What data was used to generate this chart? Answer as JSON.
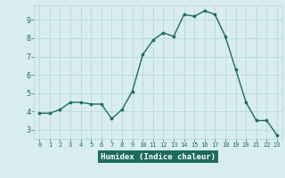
{
  "x": [
    0,
    1,
    2,
    3,
    4,
    5,
    6,
    7,
    8,
    9,
    10,
    11,
    12,
    13,
    14,
    15,
    16,
    17,
    18,
    19,
    20,
    21,
    22,
    23
  ],
  "y": [
    3.9,
    3.9,
    4.1,
    4.5,
    4.5,
    4.4,
    4.4,
    3.6,
    4.1,
    5.1,
    7.1,
    7.9,
    8.3,
    8.1,
    9.3,
    9.2,
    9.5,
    9.3,
    8.1,
    6.3,
    4.5,
    3.5,
    3.5,
    2.7
  ],
  "xlabel": "Humidex (Indice chaleur)",
  "ylim": [
    2.5,
    9.8
  ],
  "xlim": [
    -0.5,
    23.5
  ],
  "yticks": [
    3,
    4,
    5,
    6,
    7,
    8,
    9
  ],
  "xticks": [
    0,
    1,
    2,
    3,
    4,
    5,
    6,
    7,
    8,
    9,
    10,
    11,
    12,
    13,
    14,
    15,
    16,
    17,
    18,
    19,
    20,
    21,
    22,
    23
  ],
  "line_color": "#1e6b5e",
  "marker_color": "#1e6b5e",
  "bg_color": "#d8eeee",
  "grid_color": "#b8d8d8",
  "label_bg": "#1e6b5e",
  "label_color": "#ffffff",
  "tick_color": "#1e6b5e"
}
